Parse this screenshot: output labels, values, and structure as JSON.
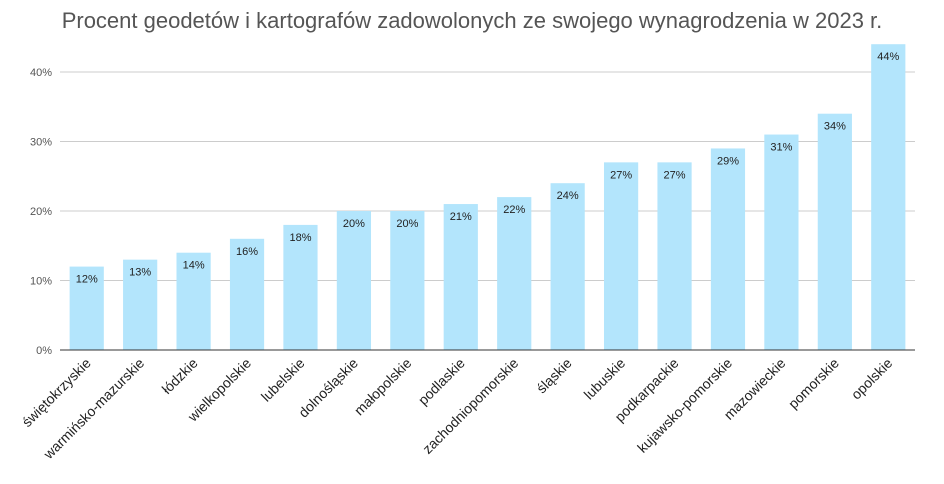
{
  "chart_data": {
    "type": "bar",
    "title": "Procent geodetów i kartografów zadowolonych ze swojego wynagrodzenia w 2023 r.",
    "xlabel": "",
    "ylabel": "",
    "categories": [
      "świętokrzyskie",
      "warmińsko-mazurskie",
      "łódzkie",
      "wielkopolskie",
      "lubelskie",
      "dolnośląskie",
      "małopolskie",
      "podlaskie",
      "zachodniopomorskie",
      "śląskie",
      "lubuskie",
      "podkarpackie",
      "kujawsko-pomorskie",
      "mazowieckie",
      "pomorskie",
      "opolskie"
    ],
    "values": [
      12,
      13,
      14,
      16,
      18,
      20,
      20,
      21,
      22,
      24,
      27,
      27,
      29,
      31,
      34,
      44
    ],
    "data_labels": [
      "12%",
      "13%",
      "14%",
      "16%",
      "18%",
      "20%",
      "20%",
      "21%",
      "22%",
      "24%",
      "27%",
      "27%",
      "29%",
      "31%",
      "34%",
      "44%"
    ],
    "ylim": [
      0,
      40
    ],
    "yticks": [
      "0%",
      "10%",
      "20%",
      "30%",
      "40%"
    ],
    "grid": true,
    "legend": "none",
    "bar_color": "#b3e5fc",
    "grid_color": "#cccccc",
    "axis_color": "#333333"
  }
}
